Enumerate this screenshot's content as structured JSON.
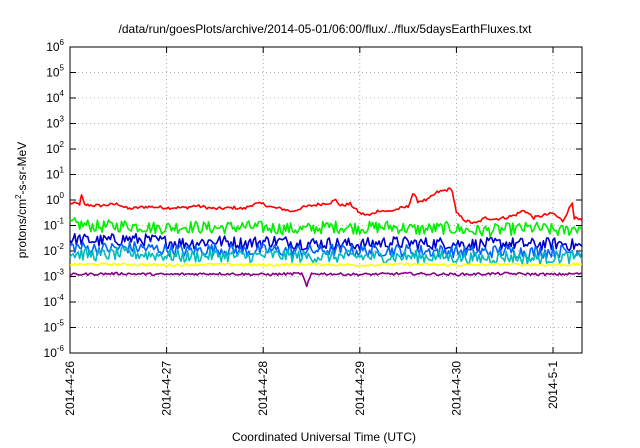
{
  "chart_data": {
    "type": "line",
    "title": "/data/run/goesPlots/archive/2014-05-01/06:00/flux/../flux/5daysEarthFluxes.txt",
    "xlabel": "Coordinated Universal Time (UTC)",
    "ylabel_base": "protons/cm",
    "ylabel_sup": "2",
    "ylabel_rest": "-s-sr-MeV",
    "y_scale": "log",
    "ylim": [
      1e-06,
      1000000.0
    ],
    "xlim_days": [
      0,
      5.3
    ],
    "grid": true,
    "x_ticks": [
      {
        "day": 0,
        "label": "2014-4-26"
      },
      {
        "day": 1,
        "label": "2014-4-27"
      },
      {
        "day": 2,
        "label": "2014-4-28"
      },
      {
        "day": 3,
        "label": "2014-4-29"
      },
      {
        "day": 4,
        "label": "2014-4-30"
      },
      {
        "day": 5,
        "label": "2014-5-1"
      }
    ],
    "y_ticks": [
      {
        "exp": 6,
        "base": "10",
        "sup": "6"
      },
      {
        "exp": 5,
        "base": "10",
        "sup": "5"
      },
      {
        "exp": 4,
        "base": "10",
        "sup": "4"
      },
      {
        "exp": 3,
        "base": "10",
        "sup": "3"
      },
      {
        "exp": 2,
        "base": "10",
        "sup": "2"
      },
      {
        "exp": 1,
        "base": "10",
        "sup": "1"
      },
      {
        "exp": 0,
        "base": "10",
        "sup": "0"
      },
      {
        "exp": -1,
        "base": "10",
        "sup": "-1"
      },
      {
        "exp": -2,
        "base": "10",
        "sup": "-2"
      },
      {
        "exp": -3,
        "base": "10",
        "sup": "-3"
      },
      {
        "exp": -4,
        "base": "10",
        "sup": "-4"
      },
      {
        "exp": -5,
        "base": "10",
        "sup": "-5"
      },
      {
        "exp": -6,
        "base": "10",
        "sup": "-6"
      }
    ],
    "series": [
      {
        "color": "#ff0000",
        "values": [
          [
            0.0,
            0.75
          ],
          [
            0.1,
            0.7
          ],
          [
            0.12,
            1.5
          ],
          [
            0.15,
            0.65
          ],
          [
            0.3,
            0.6
          ],
          [
            0.5,
            0.7
          ],
          [
            0.6,
            0.45
          ],
          [
            0.8,
            0.55
          ],
          [
            1.0,
            0.5
          ],
          [
            1.2,
            0.5
          ],
          [
            1.3,
            0.6
          ],
          [
            1.5,
            0.45
          ],
          [
            1.7,
            0.5
          ],
          [
            1.8,
            0.45
          ],
          [
            1.9,
            0.7
          ],
          [
            2.0,
            0.7
          ],
          [
            2.1,
            0.5
          ],
          [
            2.2,
            0.45
          ],
          [
            2.3,
            0.35
          ],
          [
            2.4,
            0.5
          ],
          [
            2.5,
            0.6
          ],
          [
            2.6,
            0.7
          ],
          [
            2.7,
            0.8
          ],
          [
            2.75,
            1.0
          ],
          [
            2.8,
            0.6
          ],
          [
            2.9,
            0.7
          ],
          [
            3.0,
            0.3
          ],
          [
            3.1,
            0.25
          ],
          [
            3.2,
            0.4
          ],
          [
            3.3,
            0.35
          ],
          [
            3.4,
            0.45
          ],
          [
            3.5,
            0.55
          ],
          [
            3.55,
            1.8
          ],
          [
            3.6,
            0.9
          ],
          [
            3.7,
            1.0
          ],
          [
            3.8,
            2.0
          ],
          [
            3.9,
            2.5
          ],
          [
            3.95,
            2.8
          ],
          [
            3.97,
            1.2
          ],
          [
            4.0,
            0.3
          ],
          [
            4.1,
            0.15
          ],
          [
            4.2,
            0.12
          ],
          [
            4.3,
            0.2
          ],
          [
            4.4,
            0.18
          ],
          [
            4.5,
            0.2
          ],
          [
            4.6,
            0.25
          ],
          [
            4.7,
            0.4
          ],
          [
            4.8,
            0.2
          ],
          [
            4.9,
            0.25
          ],
          [
            5.0,
            0.3
          ],
          [
            5.1,
            0.15
          ],
          [
            5.2,
            0.8
          ],
          [
            5.22,
            0.2
          ],
          [
            5.3,
            0.15
          ]
        ]
      },
      {
        "color": "#00ee00",
        "values": [
          [
            0.0,
            0.12
          ],
          [
            0.3,
            0.09
          ],
          [
            0.6,
            0.1
          ],
          [
            0.9,
            0.08
          ],
          [
            1.2,
            0.09
          ],
          [
            1.5,
            0.08
          ],
          [
            1.8,
            0.09
          ],
          [
            2.1,
            0.08
          ],
          [
            2.4,
            0.07
          ],
          [
            2.7,
            0.09
          ],
          [
            3.0,
            0.08
          ],
          [
            3.3,
            0.09
          ],
          [
            3.6,
            0.07
          ],
          [
            3.9,
            0.08
          ],
          [
            4.2,
            0.06
          ],
          [
            4.5,
            0.07
          ],
          [
            4.8,
            0.08
          ],
          [
            5.1,
            0.06
          ],
          [
            5.3,
            0.09
          ]
        ]
      },
      {
        "color": "#0000cc",
        "values": [
          [
            0.0,
            0.03
          ],
          [
            0.3,
            0.025
          ],
          [
            0.6,
            0.03
          ],
          [
            0.9,
            0.025
          ],
          [
            1.2,
            0.02
          ],
          [
            1.5,
            0.025
          ],
          [
            1.8,
            0.02
          ],
          [
            2.1,
            0.025
          ],
          [
            2.4,
            0.02
          ],
          [
            2.7,
            0.02
          ],
          [
            3.0,
            0.018
          ],
          [
            3.3,
            0.022
          ],
          [
            3.6,
            0.02
          ],
          [
            3.9,
            0.02
          ],
          [
            4.2,
            0.018
          ],
          [
            4.5,
            0.02
          ],
          [
            4.8,
            0.018
          ],
          [
            5.1,
            0.02
          ],
          [
            5.3,
            0.015
          ]
        ]
      },
      {
        "color": "#0066ff",
        "values": [
          [
            0.0,
            0.015
          ],
          [
            0.3,
            0.012
          ],
          [
            0.6,
            0.014
          ],
          [
            0.9,
            0.012
          ],
          [
            1.2,
            0.01
          ],
          [
            1.5,
            0.012
          ],
          [
            1.8,
            0.01
          ],
          [
            2.1,
            0.011
          ],
          [
            2.4,
            0.01
          ],
          [
            2.7,
            0.011
          ],
          [
            3.0,
            0.01
          ],
          [
            3.3,
            0.011
          ],
          [
            3.6,
            0.01
          ],
          [
            3.9,
            0.01
          ],
          [
            4.2,
            0.009
          ],
          [
            4.5,
            0.01
          ],
          [
            4.8,
            0.009
          ],
          [
            5.1,
            0.01
          ],
          [
            5.3,
            0.009
          ]
        ]
      },
      {
        "color": "#00bbbb",
        "values": [
          [
            0.0,
            0.008
          ],
          [
            0.3,
            0.007
          ],
          [
            0.6,
            0.008
          ],
          [
            0.9,
            0.007
          ],
          [
            1.2,
            0.006
          ],
          [
            1.5,
            0.007
          ],
          [
            1.8,
            0.006
          ],
          [
            2.1,
            0.007
          ],
          [
            2.4,
            0.006
          ],
          [
            2.7,
            0.006
          ],
          [
            3.0,
            0.006
          ],
          [
            3.3,
            0.006
          ],
          [
            3.6,
            0.006
          ],
          [
            3.9,
            0.006
          ],
          [
            4.2,
            0.005
          ],
          [
            4.5,
            0.006
          ],
          [
            4.8,
            0.005
          ],
          [
            5.1,
            0.006
          ],
          [
            5.3,
            0.005
          ]
        ]
      },
      {
        "color": "#ffff00",
        "values": [
          [
            0.0,
            0.003
          ],
          [
            0.5,
            0.003
          ],
          [
            1.0,
            0.0028
          ],
          [
            1.5,
            0.003
          ],
          [
            2.0,
            0.0028
          ],
          [
            2.5,
            0.003
          ],
          [
            3.0,
            0.0028
          ],
          [
            3.5,
            0.003
          ],
          [
            4.0,
            0.0028
          ],
          [
            4.5,
            0.003
          ],
          [
            5.0,
            0.0028
          ],
          [
            5.3,
            0.003
          ]
        ]
      },
      {
        "color": "#880088",
        "values": [
          [
            0.0,
            0.0012
          ],
          [
            0.5,
            0.0013
          ],
          [
            1.0,
            0.0012
          ],
          [
            1.5,
            0.0013
          ],
          [
            2.0,
            0.0012
          ],
          [
            2.4,
            0.0013
          ],
          [
            2.45,
            0.0004
          ],
          [
            2.5,
            0.0013
          ],
          [
            3.0,
            0.0012
          ],
          [
            3.5,
            0.0013
          ],
          [
            4.0,
            0.0012
          ],
          [
            4.5,
            0.0013
          ],
          [
            5.0,
            0.0012
          ],
          [
            5.3,
            0.0013
          ]
        ]
      }
    ]
  }
}
